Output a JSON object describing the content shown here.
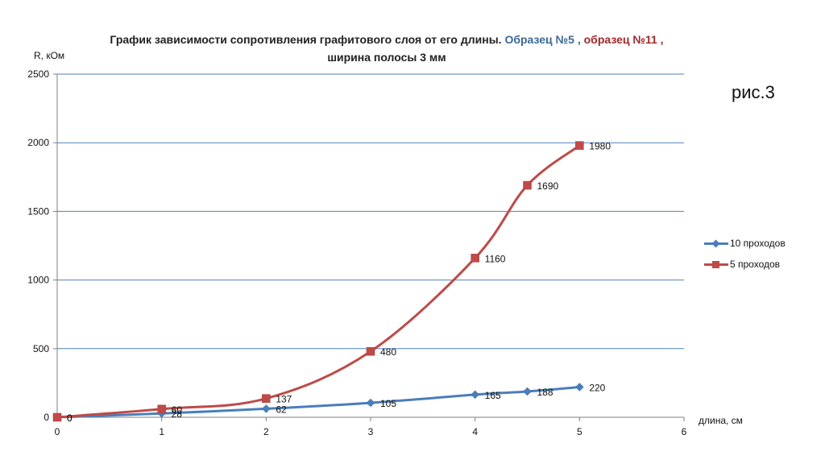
{
  "chart_data": {
    "type": "line",
    "title_parts": {
      "main": "График зависимости сопротивления графитового слоя от его длины.",
      "sample_a": "Образец №5 ,",
      "sample_b": "образец №11 ,",
      "line2": "ширина полосы 3 мм"
    },
    "ylabel": "R, кОм",
    "xlabel": "длина, см",
    "ylim": [
      0,
      2500
    ],
    "xlim": [
      0,
      6
    ],
    "yticks": [
      0,
      500,
      1000,
      1500,
      2000,
      2500
    ],
    "xticks": [
      0,
      1,
      2,
      3,
      4,
      5,
      6
    ],
    "grid": "horizontal",
    "legend_position": "right",
    "series": [
      {
        "name": "10 проходов",
        "color": "#4a7ebb",
        "marker": "diamond",
        "x": [
          0,
          1,
          2,
          3,
          4,
          4.5,
          5
        ],
        "values": [
          0,
          28,
          62,
          105,
          165,
          188,
          220
        ]
      },
      {
        "name": "5 проходов",
        "color": "#be4b48",
        "marker": "square",
        "x": [
          0,
          1,
          2,
          3,
          4,
          4.5,
          5
        ],
        "values": [
          0,
          60,
          137,
          480,
          1160,
          1690,
          1980
        ]
      }
    ]
  },
  "figure_label": "рис.3",
  "colors": {
    "grid": "#4f81bd",
    "axis": "#7f7f7f",
    "title_blue": "#3c6796",
    "title_red": "#a0282a"
  }
}
